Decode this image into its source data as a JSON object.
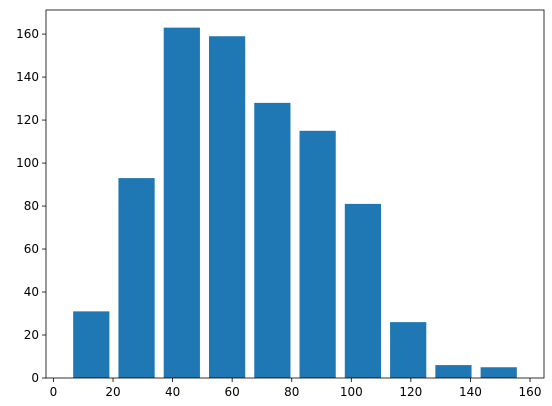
{
  "chart_data": {
    "type": "histogram",
    "bins": [
      5.1,
      20.3,
      35.5,
      50.7,
      65.9,
      81.1,
      96.3,
      111.5,
      126.7,
      141.9,
      157.1
    ],
    "values": [
      31,
      93,
      163,
      159,
      128,
      115,
      81,
      26,
      6,
      5
    ],
    "color": "#1f77b4",
    "xlim": [
      -2.5,
      164.7
    ],
    "xticks": [
      0,
      20,
      40,
      60,
      80,
      100,
      120,
      140,
      160
    ],
    "ylim": [
      0,
      171.2
    ],
    "yticks": [
      0,
      20,
      40,
      60,
      80,
      100,
      120,
      140,
      160
    ],
    "grid": false
  }
}
